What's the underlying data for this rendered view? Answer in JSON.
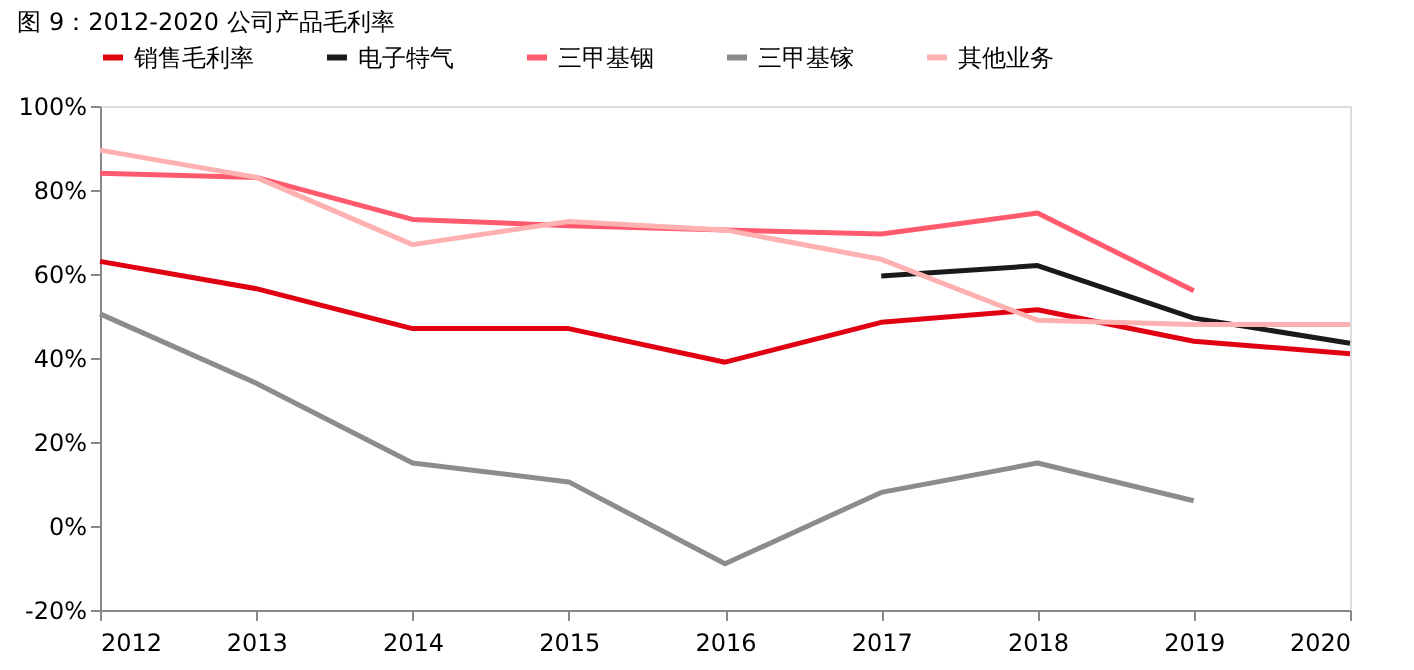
{
  "chart_data": {
    "type": "line",
    "title": "图 9：2012-2020 公司产品毛利率",
    "x": [
      2012,
      2013,
      2014,
      2015,
      2016,
      2017,
      2018,
      2019,
      2020
    ],
    "series": [
      {
        "name": "销售毛利率",
        "color": "#e00012",
        "values": [
          63,
          56.5,
          47,
          47,
          39,
          48.5,
          51.5,
          44,
          41
        ]
      },
      {
        "name": "电子特气",
        "color": "#1a1a1a",
        "values": [
          null,
          null,
          null,
          null,
          null,
          59.5,
          62,
          49.5,
          43.5
        ]
      },
      {
        "name": "三甲基铟",
        "color": "#ff5a6e",
        "values": [
          84,
          83,
          73,
          71.5,
          70.5,
          69.5,
          74.5,
          56,
          null
        ]
      },
      {
        "name": "三甲基镓",
        "color": "#8c8c8c",
        "values": [
          50.5,
          34,
          15,
          10.5,
          -9,
          8,
          15,
          6,
          null
        ]
      },
      {
        "name": "其他业务",
        "color": "#ffb0b0",
        "values": [
          89.5,
          83,
          67,
          72.5,
          70.5,
          63.5,
          49,
          48,
          48
        ]
      }
    ],
    "xlim": [
      2012,
      2020
    ],
    "xticks": [
      2012,
      2013,
      2014,
      2015,
      2016,
      2017,
      2018,
      2019,
      2020
    ],
    "ylim": [
      -20,
      100
    ],
    "yticks": [
      {
        "value": -20,
        "label": "-20%"
      },
      {
        "value": 0,
        "label": "0%"
      },
      {
        "value": 20,
        "label": "20%"
      },
      {
        "value": 40,
        "label": "40%"
      },
      {
        "value": 60,
        "label": "60%"
      },
      {
        "value": 80,
        "label": "80%"
      },
      {
        "value": 100,
        "label": "100%"
      }
    ],
    "grid": false,
    "legend": "top",
    "marker": "none",
    "line_style": "solid"
  }
}
